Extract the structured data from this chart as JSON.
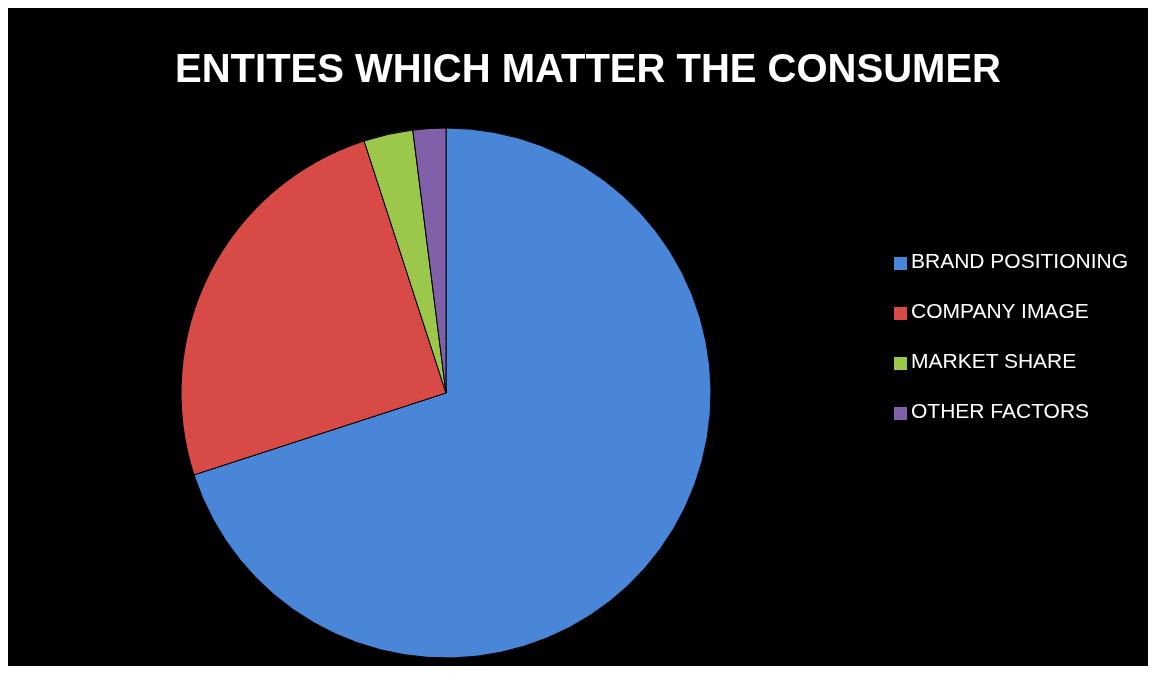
{
  "chart_data": {
    "type": "pie",
    "title": "ENTITES WHICH MATTER THE CONSUMER",
    "categories": [
      "BRAND POSITIONING",
      "COMPANY IMAGE",
      "MARKET SHARE",
      "OTHER FACTORS"
    ],
    "values": [
      70,
      25,
      3,
      2
    ],
    "colors": [
      "#4a86d8",
      "#d84a45",
      "#9bc84a",
      "#8060a8"
    ],
    "legend": "right"
  }
}
